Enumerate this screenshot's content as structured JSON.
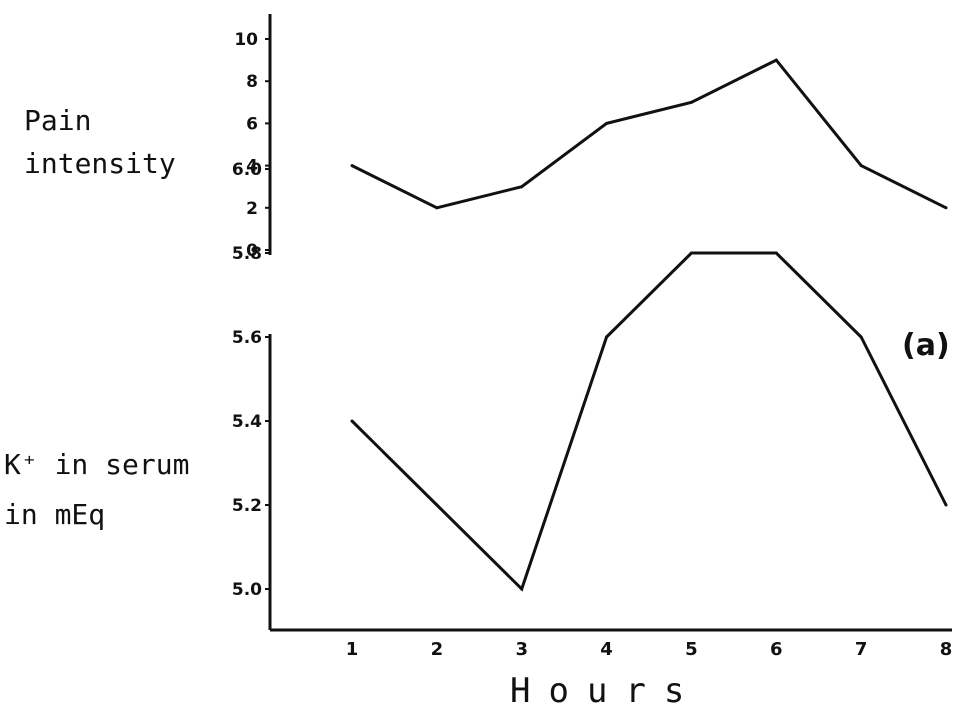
{
  "chart_data": [
    {
      "type": "line",
      "title": "",
      "ylabel_lines": [
        "Pain",
        "intensity"
      ],
      "x": [
        1,
        2,
        3,
        4,
        5,
        6,
        7,
        8
      ],
      "values": [
        4,
        2,
        3,
        6,
        7,
        9,
        4,
        2
      ],
      "yticks": [
        "0",
        "2",
        "4",
        "6",
        "8",
        "10"
      ],
      "ylim": [
        0,
        11
      ],
      "xlim": [
        0,
        8
      ],
      "grid": false
    },
    {
      "type": "line",
      "title": "",
      "panel_label": "(a)",
      "ylabel_lines": [
        "K⁺ in serum",
        "in mEq"
      ],
      "xlabel": "Hours",
      "x": [
        1,
        2,
        3,
        4,
        5,
        6,
        7,
        8
      ],
      "values": [
        5.4,
        5.2,
        5.0,
        5.6,
        5.8,
        5.8,
        5.6,
        5.2
      ],
      "xticks": [
        "1",
        "2",
        "3",
        "4",
        "5",
        "6",
        "7",
        "8"
      ],
      "yticks": [
        "5.0",
        "5.2",
        "5.4",
        "5.6",
        "5.8",
        "6.0"
      ],
      "ylim": [
        4.8,
        6.1
      ],
      "xlim": [
        0,
        8
      ],
      "grid": false
    }
  ],
  "colors": {
    "ink": "#111111",
    "background": "#ffffff"
  }
}
